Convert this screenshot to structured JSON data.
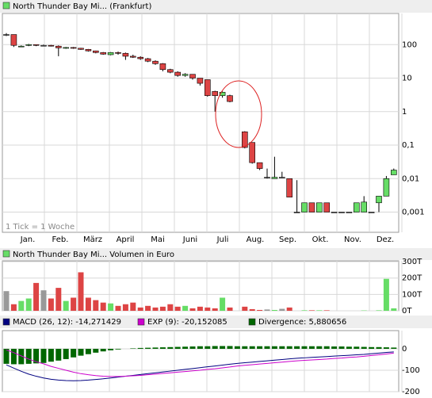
{
  "chart_data": [
    {
      "type": "candlestick",
      "title": "North Thunder Bay Mi... (Frankfurt)",
      "annotation": "1 Tick = 1 Woche",
      "log_scale": true,
      "grid": true,
      "up_color": "#66dd66",
      "down_color": "#dd4444",
      "flat_color": "#999999",
      "categories": [
        null,
        null,
        null,
        null,
        null,
        null,
        null,
        null,
        null,
        null,
        null,
        null,
        null,
        null,
        null,
        null,
        null,
        null,
        null,
        null,
        null,
        null,
        null,
        null,
        null,
        null,
        null,
        null,
        null,
        null,
        null,
        null,
        null,
        null,
        null,
        null,
        null,
        null,
        null,
        null,
        null,
        null,
        null,
        null,
        null,
        null,
        null,
        null,
        null,
        null,
        null,
        null,
        null
      ],
      "month_labels": [
        "Jan.",
        "Feb.",
        "März",
        "April",
        "Mai",
        "Juni",
        "Juli",
        "Aug.",
        "Sep.",
        "Okt.",
        "Nov.",
        "Dez."
      ],
      "open": [
        200,
        200,
        88,
        95,
        100,
        95,
        95,
        90,
        80,
        82,
        78,
        72,
        65,
        58,
        50,
        58,
        55,
        45,
        42,
        38,
        32,
        27,
        18,
        15,
        12,
        13,
        10,
        9,
        4,
        3,
        3,
        null,
        0.25,
        0.12,
        0.03,
        0.011,
        0.01,
        0.011,
        0.01,
        0.001,
        0.001,
        0.0019,
        0.001,
        0.0019,
        0.001,
        0.001,
        0.001,
        0.001,
        0.001,
        0.001,
        0.0019,
        0.003,
        0.013
      ],
      "high": [
        220,
        200,
        95,
        105,
        100,
        100,
        98,
        95,
        85,
        85,
        80,
        74,
        66,
        60,
        60,
        62,
        58,
        50,
        45,
        40,
        34,
        28,
        19,
        16,
        14,
        13,
        10,
        9,
        4.2,
        4,
        3.2,
        null,
        0.26,
        0.12,
        0.03,
        0.02,
        0.045,
        0.016,
        0.01,
        0.009,
        0.0019,
        0.0019,
        0.0019,
        0.0019,
        0.001,
        0.001,
        0.001,
        0.0019,
        0.003,
        0.001,
        0.003,
        0.012,
        0.02
      ],
      "low": [
        180,
        85,
        85,
        90,
        90,
        90,
        88,
        45,
        75,
        75,
        70,
        62,
        55,
        50,
        48,
        50,
        35,
        40,
        35,
        30,
        25,
        16,
        14,
        11,
        11,
        9,
        6,
        2.8,
        1,
        2.6,
        1.9,
        null,
        0.08,
        0.028,
        0.018,
        0.01,
        0.01,
        0.011,
        0.0028,
        0.001,
        0.001,
        0.001,
        0.001,
        0.001,
        0.001,
        0.001,
        0.001,
        0.001,
        0.001,
        0.001,
        0.001,
        0.003,
        0.013
      ],
      "close": [
        200,
        95,
        90,
        100,
        95,
        95,
        90,
        80,
        82,
        78,
        72,
        65,
        58,
        52,
        58,
        55,
        45,
        42,
        38,
        32,
        27,
        18,
        15,
        12,
        13,
        10,
        7,
        3,
        3,
        3.8,
        2,
        null,
        0.085,
        0.03,
        0.02,
        0.011,
        0.011,
        0.011,
        0.0028,
        0.001,
        0.0019,
        0.001,
        0.0019,
        0.001,
        0.001,
        0.001,
        0.001,
        0.0019,
        0.002,
        0.001,
        0.003,
        0.01,
        0.018
      ],
      "ylim": [
        0.00025,
        850
      ],
      "yticks": [
        {
          "value": 100,
          "label": "100"
        },
        {
          "value": 10,
          "label": "10"
        },
        1,
        {
          "value": 0.1,
          "label": "0,1"
        },
        {
          "value": 0.01,
          "label": "0,01"
        },
        {
          "value": 0.001,
          "label": "0,001"
        }
      ]
    },
    {
      "type": "bar",
      "title": "North Thunder Bay Mi... Volumen in Euro",
      "grid": true,
      "values": [
        120,
        40,
        60,
        75,
        170,
        125,
        75,
        140,
        60,
        80,
        235,
        80,
        65,
        50,
        45,
        30,
        40,
        50,
        20,
        30,
        20,
        25,
        40,
        25,
        30,
        15,
        25,
        20,
        15,
        80,
        20,
        null,
        25,
        10,
        5,
        8,
        5,
        12,
        20,
        0,
        3,
        3,
        3,
        3,
        0,
        0,
        0,
        0,
        2,
        0,
        3,
        195,
        15
      ],
      "ylim": [
        0,
        305
      ],
      "yticks": [
        {
          "value": 300,
          "label": "300T"
        },
        {
          "value": 200,
          "label": "200T"
        },
        {
          "value": 100,
          "label": "100T"
        },
        {
          "value": 0,
          "label": "0T"
        }
      ]
    },
    {
      "type": "macd",
      "grid": true,
      "series": [
        {
          "name": "MACD (26, 12): -14,271429",
          "color": "#000080",
          "kind": "line",
          "values": [
            -75,
            -90,
            -105,
            -118,
            -128,
            -136,
            -142,
            -146,
            -148,
            -149,
            -148,
            -146,
            -143,
            -140,
            -136,
            -132,
            -128,
            -124,
            -120,
            -116,
            -112,
            -108,
            -104,
            -100,
            -96,
            -92,
            -88,
            -84,
            -80,
            -76,
            -72,
            -68,
            -65,
            -62,
            -59,
            -56,
            -53,
            -50,
            -47,
            -44,
            -42,
            -40,
            -38,
            -36,
            -34,
            -32,
            -30,
            -28,
            -26,
            -23,
            -20,
            -17,
            -14.27
          ]
        },
        {
          "name": "EXP (9): -20,152085",
          "color": "#cc00cc",
          "kind": "line",
          "values": [
            -5,
            -18,
            -33,
            -48,
            -60,
            -70,
            -82,
            -91,
            -100,
            -109,
            -116,
            -121,
            -125,
            -128,
            -129,
            -129,
            -128,
            -126,
            -124,
            -121,
            -118,
            -115,
            -112,
            -109,
            -106,
            -103,
            -100,
            -96,
            -93,
            -89,
            -85,
            -80,
            -77,
            -74,
            -71,
            -68,
            -65,
            -62,
            -59,
            -56,
            -54,
            -52,
            -50,
            -48,
            -45,
            -43,
            -40,
            -38,
            -35,
            -31,
            -28,
            -24,
            -20.15
          ]
        },
        {
          "name": "Divergence: 5,880656",
          "color": "#006600",
          "kind": "bar",
          "values": [
            -70,
            -72,
            -72,
            -70,
            -68,
            -66,
            -60,
            -55,
            -48,
            -40,
            -32,
            -25,
            -18,
            -12,
            -7,
            -3,
            0,
            2,
            4,
            5,
            6,
            7,
            8,
            9,
            10,
            11,
            12,
            12,
            13,
            13,
            13,
            12,
            12,
            12,
            12,
            12,
            12,
            12,
            12,
            12,
            12,
            12,
            12,
            12,
            11,
            11,
            10,
            10,
            9,
            8,
            8,
            7,
            5.88
          ]
        }
      ],
      "ylim": [
        -200,
        85
      ],
      "yticks": [
        0,
        -100,
        -200
      ]
    }
  ]
}
